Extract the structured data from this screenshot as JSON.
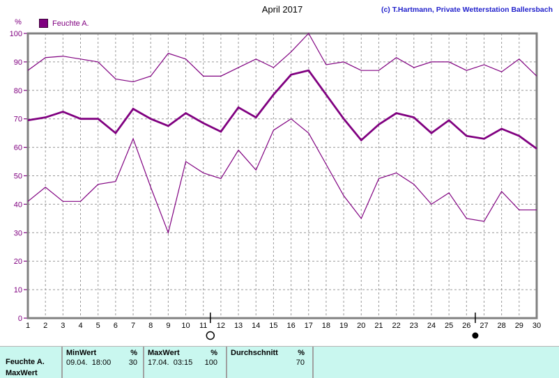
{
  "header": {
    "title": "April 2017",
    "copyright": "(c) T.Hartmann, Private Wetterstation Ballersbach"
  },
  "legend": {
    "unit": "%",
    "series_label": "Feuchte A."
  },
  "chart_data": {
    "type": "line",
    "title": "April 2017",
    "ylabel": "%",
    "ylim": [
      0,
      100
    ],
    "yticks": [
      0,
      10,
      20,
      30,
      40,
      50,
      60,
      70,
      80,
      90,
      100
    ],
    "x": [
      1,
      2,
      3,
      4,
      5,
      6,
      7,
      8,
      9,
      10,
      11,
      12,
      13,
      14,
      15,
      16,
      17,
      18,
      19,
      20,
      21,
      22,
      23,
      24,
      25,
      26,
      27,
      28,
      29,
      30
    ],
    "line_color": "#800080",
    "grid_color": "#999999",
    "frame_color": "#808080",
    "legend_position": "top-left",
    "grid": true,
    "series": [
      {
        "name": "Feuchte A. Maximum",
        "role": "max",
        "thick": false,
        "values": [
          87,
          91.5,
          92,
          91,
          90,
          84,
          83,
          85,
          93,
          91,
          85,
          85,
          88,
          91,
          88,
          93.5,
          100,
          89,
          90,
          87,
          87,
          91.5,
          88,
          90,
          90,
          87,
          89,
          86.5,
          91,
          85
        ]
      },
      {
        "name": "Feuchte A. Durchschnitt",
        "role": "avg",
        "thick": true,
        "values": [
          69.5,
          70.5,
          72.5,
          70,
          70,
          65,
          73.5,
          70,
          67.5,
          72,
          68.5,
          65.5,
          74,
          70.5,
          78.5,
          85.5,
          87,
          78.5,
          70,
          62.5,
          68,
          72,
          70.5,
          65,
          69.5,
          64,
          63,
          66.5,
          64,
          59.5
        ]
      },
      {
        "name": "Feuchte A. Minimum",
        "role": "min",
        "thick": false,
        "values": [
          41,
          46,
          41,
          41,
          47,
          48,
          63,
          46,
          30,
          55,
          51,
          49,
          59,
          52,
          66,
          70,
          65,
          54,
          43,
          35,
          49,
          51,
          47,
          40,
          44,
          35,
          34,
          44.5,
          38,
          38
        ]
      }
    ],
    "moon_markers": [
      {
        "symbol": "full-moon",
        "day": 11.4
      },
      {
        "symbol": "new-moon",
        "day": 26.5
      }
    ]
  },
  "table": {
    "background": "#c9f7ef",
    "row_label_line1": "Feuchte A.",
    "row_label_line2": "MaxWert",
    "columns": [
      {
        "header": "MinWert",
        "unit": "%",
        "value_text": "09.04.  18:00",
        "value_num": "30"
      },
      {
        "header": "MaxWert",
        "unit": "%",
        "value_text": "17.04.  03:15",
        "value_num": "100"
      },
      {
        "header": "Durchschnitt",
        "unit": "%",
        "value_text": "",
        "value_num": "70"
      }
    ]
  }
}
